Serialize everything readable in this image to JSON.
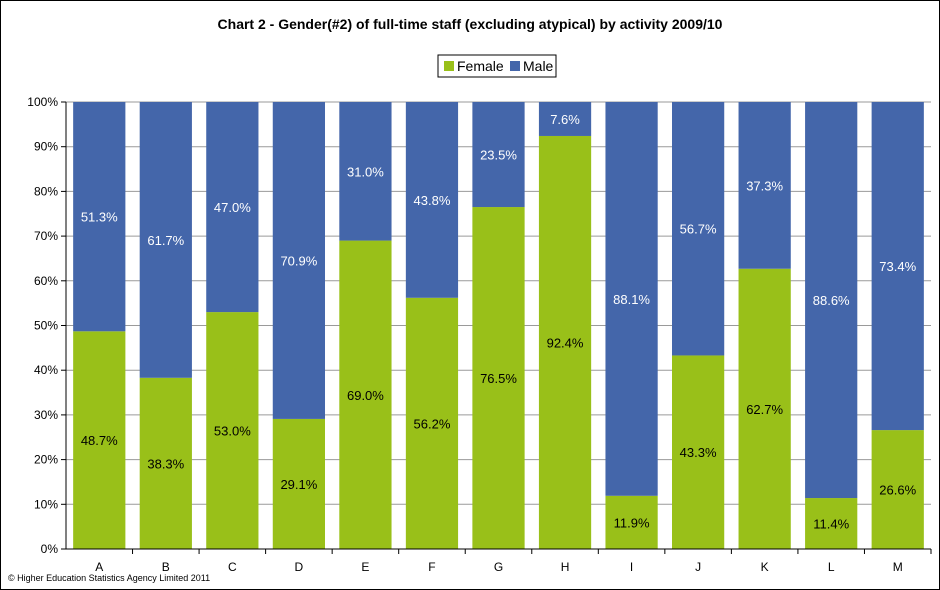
{
  "chart_data": {
    "type": "bar",
    "stacked": "percent",
    "title": "Chart 2 - Gender(#2) of full-time staff (excluding atypical) by activity 2009/10",
    "xlabel": "",
    "ylabel": "",
    "ylim": [
      0,
      100
    ],
    "y_ticks": [
      "0%",
      "10%",
      "20%",
      "30%",
      "40%",
      "50%",
      "60%",
      "70%",
      "80%",
      "90%",
      "100%"
    ],
    "grid": true,
    "legend_position": "top",
    "categories": [
      "A",
      "B",
      "C",
      "D",
      "E",
      "F",
      "G",
      "H",
      "I",
      "J",
      "K",
      "L",
      "M"
    ],
    "series": [
      {
        "name": "Female",
        "color": "#99C019",
        "label_color": "#000000",
        "values": [
          48.7,
          38.3,
          53.0,
          29.1,
          69.0,
          56.2,
          76.5,
          92.4,
          11.9,
          43.3,
          62.7,
          11.4,
          26.6
        ],
        "labels": [
          "48.7%",
          "38.3%",
          "53.0%",
          "29.1%",
          "69.0%",
          "56.2%",
          "76.5%",
          "92.4%",
          "11.9%",
          "43.3%",
          "62.7%",
          "11.4%",
          "26.6%"
        ]
      },
      {
        "name": "Male",
        "color": "#4466AA",
        "label_color": "#ffffff",
        "values": [
          51.3,
          61.7,
          47.0,
          70.9,
          31.0,
          43.8,
          23.5,
          7.6,
          88.1,
          56.7,
          37.3,
          88.6,
          73.4
        ],
        "labels": [
          "51.3%",
          "61.7%",
          "47.0%",
          "70.9%",
          "31.0%",
          "43.8%",
          "23.5%",
          "7.6%",
          "88.1%",
          "56.7%",
          "37.3%",
          "88.6%",
          "73.4%"
        ]
      }
    ]
  },
  "footer": {
    "copyright": "© Higher Education Statistics Agency Limited 2011"
  }
}
